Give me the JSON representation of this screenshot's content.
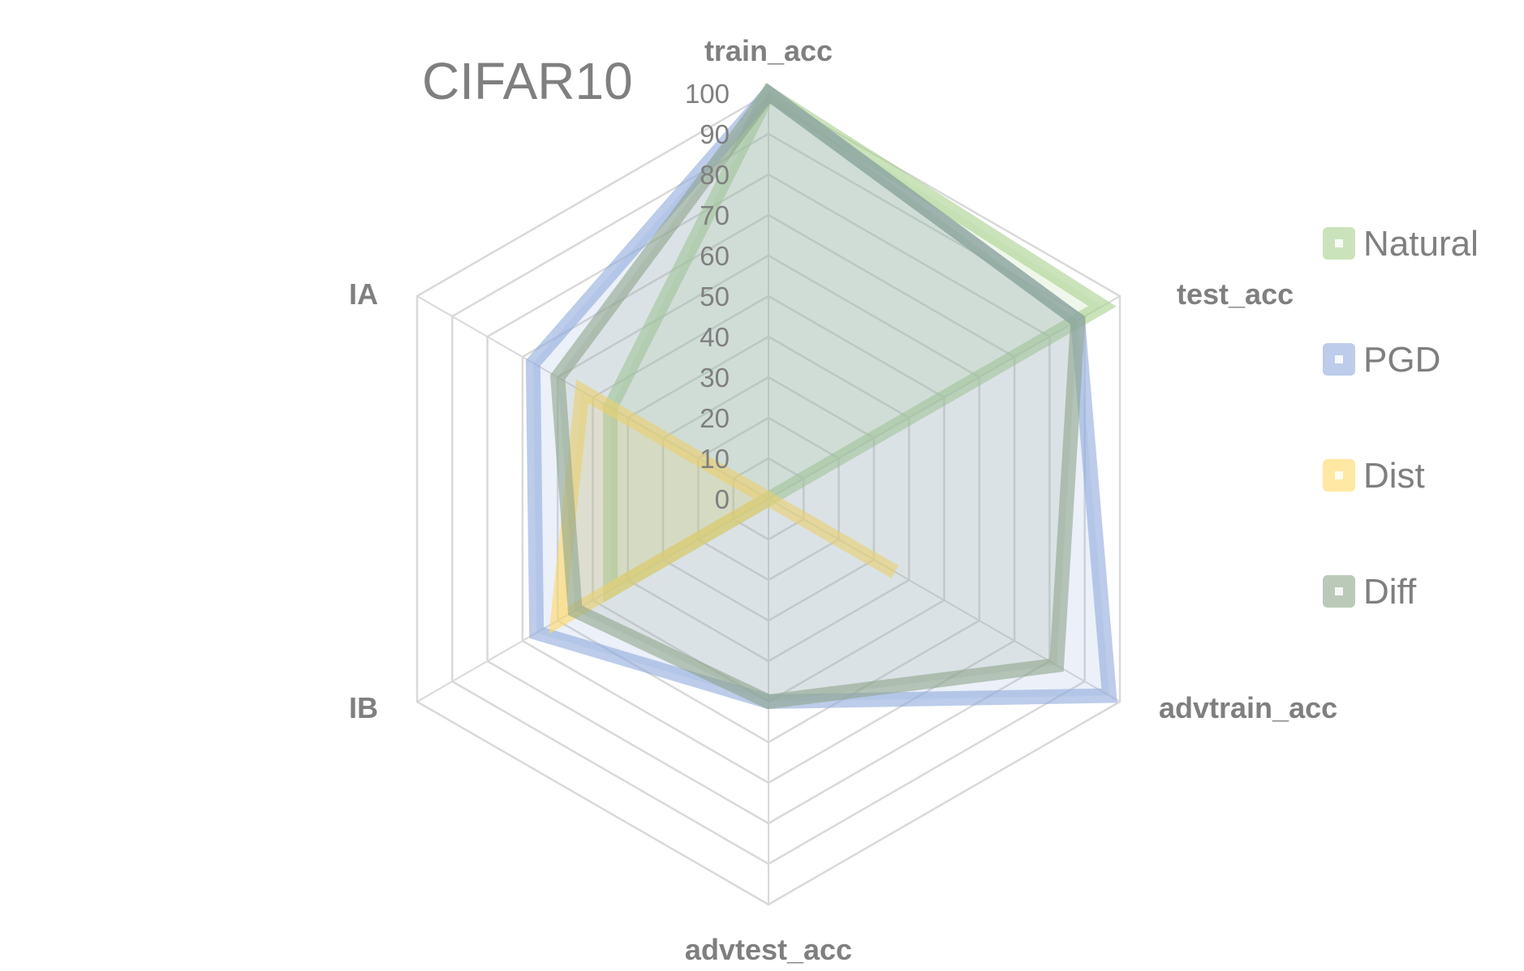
{
  "chart_data": {
    "type": "radar",
    "title": "CIFAR10",
    "axes": [
      "train_acc",
      "test_acc",
      "advtrain_acc",
      "advtest_acc",
      "IB",
      "IA"
    ],
    "rlim": [
      0,
      100
    ],
    "ticks": [
      0,
      10,
      20,
      30,
      40,
      50,
      60,
      70,
      80,
      90,
      100
    ],
    "grid": true,
    "legend_position": "right",
    "series": [
      {
        "name": "Natural",
        "color": "#a9d18e",
        "values": [
          100,
          95,
          0,
          0,
          45,
          45
        ]
      },
      {
        "name": "PGD",
        "color": "#8faadc",
        "values": [
          100,
          88,
          97,
          50,
          66,
          67
        ]
      },
      {
        "name": "Dist",
        "color": "#ffd966",
        "values": [
          0,
          0,
          36,
          0,
          60,
          53
        ]
      },
      {
        "name": "Diff",
        "color": "#8ea58a",
        "values": [
          100,
          88,
          82,
          50,
          55,
          60
        ]
      }
    ]
  }
}
